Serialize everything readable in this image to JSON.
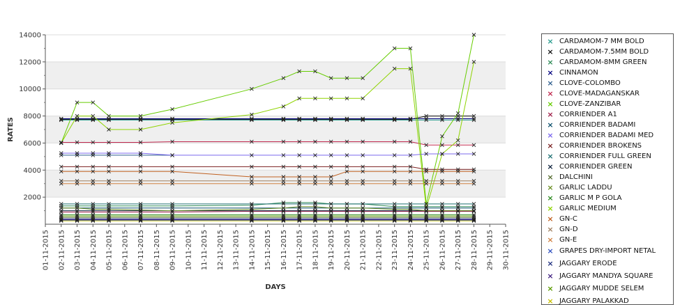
{
  "chart_data": {
    "type": "line",
    "xlabel": "DAYS",
    "ylabel": "RATES",
    "ylim": [
      0,
      14000
    ],
    "yticks": [
      2000,
      4000,
      6000,
      8000,
      10000,
      12000,
      14000
    ],
    "x_tick_labels": [
      "01-11-2015",
      "02-11-2015",
      "03-11-2015",
      "04-11-2015",
      "05-11-2015",
      "06-11-2015",
      "07-11-2015",
      "08-11-2015",
      "09-11-2015",
      "10-11-2015",
      "11-11-2015",
      "12-11-2015",
      "13-11-2015",
      "14-11-2015",
      "15-11-2015",
      "16-11-2015",
      "17-11-2015",
      "18-11-2015",
      "19-11-2015",
      "20-11-2015",
      "21-11-2015",
      "22-11-2015",
      "23-11-2015",
      "24-11-2015",
      "25-11-2015",
      "26-11-2015",
      "27-11-2015",
      "28-11-2015",
      "29-11-2015",
      "30-11-2015"
    ],
    "grid_bands": true,
    "legend_position": "right",
    "series": [
      {
        "name": "CARDAMOM-7 MM BOLD",
        "color": "#2a9d8f",
        "x": [
          2,
          3,
          4,
          5,
          7,
          9,
          14,
          16,
          17,
          18,
          19,
          20,
          21,
          23,
          24,
          25,
          26,
          27,
          28
        ],
        "values": [
          7700,
          7700,
          7700,
          7700,
          7700,
          7700,
          7700,
          7700,
          7700,
          7700,
          7700,
          7700,
          7700,
          7700,
          7700,
          7700,
          7700,
          7700,
          7700
        ]
      },
      {
        "name": "CARDAMOM-7.5MM BOLD",
        "color": "#111111",
        "x": [
          2,
          3,
          4,
          5,
          7,
          9,
          14,
          16,
          17,
          18,
          19,
          20,
          21,
          23,
          24,
          25,
          26,
          27,
          28
        ],
        "values": [
          7750,
          7750,
          7750,
          7750,
          7750,
          7750,
          7750,
          7750,
          7750,
          7750,
          7750,
          7750,
          7750,
          7750,
          7750,
          8000,
          8000,
          8000,
          8000
        ]
      },
      {
        "name": "CARDAMOM-8MM GREEN",
        "color": "#2e8b57",
        "x": [
          2,
          3,
          4,
          5,
          7,
          9,
          14,
          16,
          17,
          18,
          19,
          20,
          21,
          23,
          24,
          25,
          26,
          27,
          28
        ],
        "values": [
          1350,
          1350,
          1350,
          1350,
          1350,
          1350,
          1400,
          1600,
          1600,
          1600,
          1500,
          1500,
          1500,
          1300,
          1300,
          1300,
          1300,
          1300,
          1300
        ]
      },
      {
        "name": "CINNAMON",
        "color": "#00007f",
        "x": [
          2,
          3,
          4,
          5,
          7,
          9,
          14,
          16,
          17,
          18,
          19,
          20,
          21,
          23,
          24,
          25,
          26,
          27,
          28
        ],
        "values": [
          7800,
          7800,
          7800,
          7800,
          7800,
          7800,
          7800,
          7800,
          7800,
          7800,
          7800,
          7800,
          7800,
          7800,
          7800,
          7800,
          7800,
          7800,
          7800
        ]
      },
      {
        "name": "CLOVE-COLOMBO",
        "color": "#2f5f8f",
        "x": [
          2,
          3,
          4,
          5,
          7,
          9
        ],
        "values": [
          5100,
          5100,
          5100,
          5100,
          5100,
          5100
        ]
      },
      {
        "name": "CLOVE-MADAGANSKAR",
        "color": "#c0284e",
        "x": [
          2,
          3,
          4,
          5,
          7,
          9,
          14,
          16,
          17,
          18,
          19,
          20,
          21,
          23,
          24,
          25,
          26,
          27,
          28
        ],
        "values": [
          6050,
          6050,
          6050,
          6050,
          6050,
          6100,
          6100,
          6100,
          6100,
          6100,
          6100,
          6100,
          6100,
          6100,
          6100,
          5850,
          5850,
          5850,
          5850
        ]
      },
      {
        "name": "CLOVE-ZANZIBAR",
        "color": "#66cc00",
        "x": [
          2,
          3,
          4,
          5,
          7,
          9,
          14,
          16,
          17,
          18,
          19,
          20,
          21,
          23,
          24,
          25,
          26,
          27,
          28
        ],
        "values": [
          6000,
          9000,
          9000,
          8000,
          8000,
          8500,
          10000,
          10800,
          11300,
          11300,
          10800,
          10800,
          10800,
          13000,
          13000,
          1500,
          6500,
          8200,
          14000
        ]
      },
      {
        "name": "CORRIENDER A1",
        "color": "#a0204a",
        "x": [
          2,
          3,
          4,
          5,
          7,
          9,
          14,
          16,
          17,
          18,
          19,
          20,
          21,
          23,
          24,
          25,
          26,
          27,
          28
        ],
        "values": [
          900,
          900,
          900,
          900,
          900,
          900,
          950,
          950,
          950,
          950,
          950,
          950,
          950,
          950,
          950,
          950,
          950,
          950,
          950
        ]
      },
      {
        "name": "CORRIENDER BADAMI",
        "color": "#0b4f6c",
        "x": [
          2,
          3,
          4,
          5,
          7,
          9,
          14,
          16,
          17,
          18,
          19,
          20,
          21,
          23,
          24,
          25,
          26,
          27,
          28
        ],
        "values": [
          1200,
          1200,
          1200,
          1200,
          1200,
          1200,
          1200,
          1200,
          1200,
          1200,
          1200,
          1200,
          1200,
          1200,
          1200,
          1200,
          1200,
          1200,
          1200
        ]
      },
      {
        "name": "CORRIENDER BADAMI MED",
        "color": "#7b68ee",
        "x": [
          2,
          3,
          4,
          5,
          7,
          9,
          14,
          16,
          17,
          18,
          19,
          20,
          21,
          23,
          24,
          25,
          26,
          27,
          28
        ],
        "values": [
          5250,
          5250,
          5250,
          5250,
          5250,
          5100,
          5100,
          5100,
          5100,
          5100,
          5100,
          5100,
          5100,
          5100,
          5100,
          5200,
          5200,
          5200,
          5200
        ]
      },
      {
        "name": "CORRIENDER BROKENS",
        "color": "#7a1f1f",
        "x": [
          2,
          3,
          4,
          5,
          7,
          9,
          14,
          16,
          17,
          18,
          19,
          20,
          21,
          23,
          24,
          25,
          26,
          27,
          28
        ],
        "values": [
          4250,
          4250,
          4250,
          4250,
          4250,
          4250,
          4250,
          4250,
          4250,
          4250,
          4250,
          4250,
          4250,
          4250,
          4250,
          4050,
          4050,
          4050,
          4050
        ]
      },
      {
        "name": "CORRIENDER FULL GREEN",
        "color": "#1d6f72",
        "x": [
          2,
          3,
          4,
          5,
          7,
          9,
          14,
          16,
          17,
          18,
          19,
          20,
          21,
          23,
          24,
          25,
          26,
          27,
          28
        ],
        "values": [
          1500,
          1500,
          1500,
          1500,
          1500,
          1500,
          1500,
          1500,
          1500,
          1500,
          1500,
          1500,
          1500,
          1500,
          1500,
          1500,
          1500,
          1500,
          1500
        ]
      },
      {
        "name": "CORRIENDER GREEN",
        "color": "#0b1f3a",
        "x": [
          2,
          3,
          4,
          5,
          7,
          9,
          14,
          16,
          17,
          18,
          19,
          20,
          21,
          23,
          24,
          25,
          26,
          27,
          28
        ],
        "values": [
          1000,
          1000,
          1000,
          1000,
          1000,
          1000,
          1000,
          1000,
          1000,
          1000,
          1000,
          1000,
          1000,
          1000,
          1000,
          1000,
          1000,
          1000,
          1000
        ]
      },
      {
        "name": "DALCHINI",
        "color": "#556b2f",
        "x": [
          2,
          3,
          4,
          5,
          7,
          9,
          14,
          16,
          17,
          18,
          19,
          20,
          21,
          23,
          24,
          25,
          26,
          27,
          28
        ],
        "values": [
          500,
          500,
          500,
          500,
          500,
          500,
          500,
          500,
          500,
          500,
          500,
          500,
          500,
          500,
          500,
          500,
          500,
          500,
          500
        ]
      },
      {
        "name": "GARLIC LADDU",
        "color": "#6b8e23",
        "x": [
          2,
          3,
          4,
          5,
          7,
          9,
          14,
          16,
          17,
          18,
          19,
          20,
          21,
          23,
          24,
          25,
          26,
          27,
          28
        ],
        "values": [
          1200,
          1200,
          1100,
          1100,
          1050,
          1000,
          1100,
          1200,
          1300,
          1300,
          1200,
          1200,
          1200,
          1100,
          1100,
          1000,
          1000,
          1000,
          1000
        ]
      },
      {
        "name": "GARLIC M P GOLA",
        "color": "#2e8b22",
        "x": [
          2,
          3,
          4,
          5,
          7,
          9,
          14,
          16,
          17,
          18,
          19,
          20,
          21,
          23,
          24,
          25,
          26,
          27,
          28
        ],
        "values": [
          700,
          700,
          700,
          700,
          700,
          700,
          700,
          700,
          700,
          700,
          700,
          700,
          700,
          700,
          700,
          700,
          700,
          700,
          700
        ]
      },
      {
        "name": "GARLIC MEDIUM",
        "color": "#8fd400",
        "x": [
          2,
          3,
          4,
          5,
          7,
          9,
          14,
          16,
          17,
          18,
          19,
          20,
          21,
          23,
          24,
          25,
          26,
          27,
          28
        ],
        "values": [
          6000,
          8000,
          8000,
          7000,
          7000,
          7500,
          8100,
          8700,
          9300,
          9300,
          9300,
          9300,
          9300,
          11500,
          11500,
          1200,
          5200,
          6200,
          12000
        ]
      },
      {
        "name": "GN-C",
        "color": "#c06020",
        "x": [
          2,
          3,
          4,
          5,
          7,
          9,
          14,
          16,
          17,
          18,
          19,
          20,
          21,
          23,
          24,
          25,
          26,
          27,
          28
        ],
        "values": [
          3900,
          3900,
          3900,
          3900,
          3900,
          3900,
          3500,
          3500,
          3500,
          3500,
          3500,
          3900,
          3900,
          3900,
          3900,
          3900,
          3900,
          3900,
          3900
        ]
      },
      {
        "name": "GN-D",
        "color": "#a08060",
        "x": [
          2,
          3,
          4,
          5,
          7,
          9,
          14,
          16,
          17,
          18,
          19,
          20,
          21,
          23,
          24,
          25,
          26,
          27,
          28
        ],
        "values": [
          3200,
          3200,
          3200,
          3200,
          3200,
          3200,
          3200,
          3200,
          3200,
          3200,
          3200,
          3200,
          3200,
          3200,
          3200,
          3200,
          3200,
          3200,
          3200
        ]
      },
      {
        "name": "GN-E",
        "color": "#d08040",
        "x": [
          2,
          3,
          4,
          5,
          7,
          9,
          14,
          16,
          17,
          18,
          19,
          20,
          21,
          23,
          24,
          25,
          26,
          27,
          28
        ],
        "values": [
          3000,
          3000,
          3000,
          3000,
          3000,
          3000,
          3000,
          3000,
          3000,
          3000,
          3000,
          3000,
          3000,
          3000,
          3000,
          3000,
          3000,
          3000,
          3000
        ]
      },
      {
        "name": "GRAPES DRY-IMPORT NETAL",
        "color": "#3050c0",
        "x": [
          2,
          3,
          4,
          5,
          7,
          9,
          14,
          16,
          17,
          18,
          19,
          20,
          21,
          23,
          24,
          25,
          26,
          27,
          28
        ],
        "values": [
          300,
          300,
          300,
          300,
          300,
          300,
          300,
          300,
          300,
          300,
          300,
          300,
          300,
          300,
          300,
          300,
          300,
          300,
          300
        ]
      },
      {
        "name": "JAGGARY ERODE",
        "color": "#203080",
        "x": [
          2,
          3,
          4,
          5,
          7,
          9,
          14,
          16,
          17,
          18,
          19,
          20,
          21,
          23,
          24,
          25,
          26,
          27,
          28
        ],
        "values": [
          400,
          400,
          400,
          400,
          400,
          400,
          400,
          400,
          400,
          400,
          400,
          400,
          400,
          400,
          400,
          400,
          400,
          400,
          400
        ]
      },
      {
        "name": "JAGGARY MANDYA SQUARE",
        "color": "#402080",
        "x": [
          2,
          3,
          4,
          5,
          7,
          9,
          14,
          16,
          17,
          18,
          19,
          20,
          21,
          23,
          24,
          25,
          26,
          27,
          28
        ],
        "values": [
          350,
          350,
          350,
          350,
          350,
          350,
          350,
          350,
          350,
          350,
          350,
          350,
          350,
          350,
          350,
          350,
          350,
          350,
          350
        ]
      },
      {
        "name": "JAGGARY MUDDE SELEM",
        "color": "#5a9a00",
        "x": [
          2,
          3,
          4,
          5,
          7,
          9,
          14,
          16,
          17,
          18,
          19,
          20,
          21,
          23,
          24,
          25,
          26,
          27,
          28
        ],
        "values": [
          600,
          600,
          600,
          600,
          600,
          600,
          600,
          600,
          600,
          600,
          600,
          600,
          600,
          600,
          600,
          600,
          600,
          600,
          600
        ]
      },
      {
        "name": "JAGGARY PALAKKAD",
        "color": "#c8c000",
        "x": [
          2,
          3,
          4,
          5,
          7,
          9,
          14,
          16,
          17,
          18,
          19,
          20,
          21,
          23,
          24,
          25,
          26,
          27,
          28
        ],
        "values": [
          250,
          250,
          250,
          250,
          250,
          250,
          250,
          250,
          250,
          250,
          250,
          250,
          250,
          250,
          250,
          250,
          250,
          250,
          250
        ]
      }
    ]
  }
}
